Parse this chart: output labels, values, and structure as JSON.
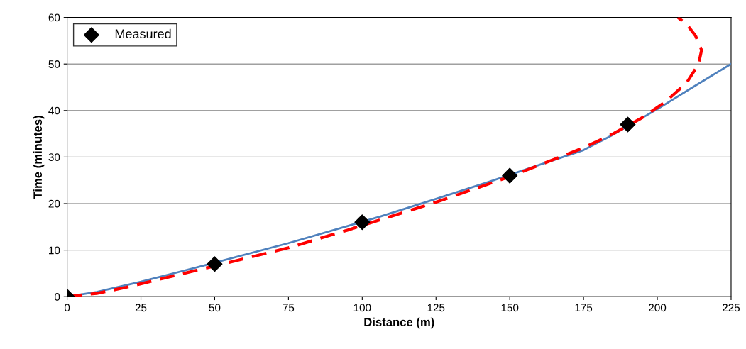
{
  "chart_data": {
    "type": "line",
    "xlabel": "Distance (m)",
    "ylabel": "Time (minutes)",
    "xlim": [
      0,
      225
    ],
    "ylim": [
      0,
      60
    ],
    "xticks": [
      0,
      25,
      50,
      75,
      100,
      125,
      150,
      175,
      200,
      225
    ],
    "yticks": [
      0,
      10,
      20,
      30,
      40,
      50,
      60
    ],
    "grid": "y",
    "legend": "top left",
    "series": [
      {
        "name": "Measured",
        "type": "scatter",
        "marker": "diamond",
        "color": "#000000",
        "x": [
          0,
          50,
          100,
          150,
          190
        ],
        "values": [
          0,
          7,
          16,
          26,
          37
        ]
      },
      {
        "color": "#4f81bd",
        "line_style": "solid",
        "x": [
          0,
          10,
          25,
          44,
          75,
          106,
          125,
          144,
          175,
          185,
          200,
          212,
          225
        ],
        "values": [
          0,
          1,
          3.2,
          6.3,
          11.5,
          17.2,
          21,
          24.9,
          31.5,
          34.8,
          40.3,
          45,
          50
        ]
      },
      {
        "color": "#ff0000",
        "line_style": "dashed",
        "x": [
          0,
          10,
          20,
          50,
          75,
          95,
          125,
          150,
          165,
          175,
          185,
          195,
          203,
          210,
          214,
          215,
          213,
          210,
          207
        ],
        "values": [
          0,
          0.7,
          2,
          6.6,
          10.5,
          14.3,
          20.3,
          25.8,
          29.5,
          32,
          35,
          38.5,
          42,
          46,
          50,
          53,
          56,
          58.5,
          60
        ]
      }
    ]
  }
}
